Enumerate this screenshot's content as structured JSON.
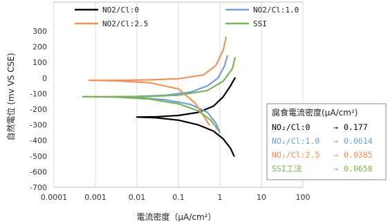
{
  "chart_data": {
    "type": "line",
    "xlabel": "電流密度（μA/cm²）",
    "ylabel": "自然電位 (mv VS CSE)",
    "xscale": "log",
    "xlim": [
      0.0001,
      100
    ],
    "ylim": [
      -700,
      300
    ],
    "x_ticks": [
      "0.0001",
      "0.001",
      "0.01",
      "0.1",
      "1",
      "10",
      "100"
    ],
    "y_ticks": [
      "300",
      "200",
      "100",
      "0",
      "-100",
      "-200",
      "-300",
      "-400",
      "-500",
      "-600",
      "-700"
    ],
    "grid": "vertical",
    "legend_position": "top",
    "series": [
      {
        "name": "NO2/Cl:0",
        "color": "#000000",
        "anodic": {
          "x": [
            0.01,
            0.03,
            0.1,
            0.3,
            0.7,
            1.2,
            1.8,
            2.3
          ],
          "y": [
            -250,
            -248,
            -240,
            -220,
            -180,
            -120,
            -50,
            0
          ]
        },
        "cathodic": {
          "x": [
            0.01,
            0.03,
            0.1,
            0.3,
            0.7,
            1.2,
            1.8,
            2.2
          ],
          "y": [
            -250,
            -255,
            -270,
            -300,
            -340,
            -390,
            -450,
            -500
          ]
        }
      },
      {
        "name": "NO2/Cl:1.0",
        "color": "#6f9fd8",
        "anodic": {
          "x": [
            0.003,
            0.01,
            0.05,
            0.2,
            0.5,
            0.9,
            1.3,
            1.5
          ],
          "y": [
            -120,
            -118,
            -110,
            -90,
            -50,
            0,
            80,
            140
          ]
        },
        "cathodic": {
          "x": [
            0.003,
            0.01,
            0.05,
            0.2,
            0.5,
            0.8,
            1.0
          ],
          "y": [
            -120,
            -125,
            -140,
            -170,
            -220,
            -290,
            -350
          ]
        }
      },
      {
        "name": "NO2/Cl:2.5",
        "color": "#f0935a",
        "anodic": {
          "x": [
            0.0007,
            0.003,
            0.02,
            0.1,
            0.4,
            0.8,
            1.2,
            1.4
          ],
          "y": [
            -15,
            -15,
            -12,
            -5,
            20,
            80,
            180,
            260
          ]
        },
        "cathodic": {
          "x": [
            0.0007,
            0.003,
            0.02,
            0.1,
            0.25,
            0.4,
            0.55
          ],
          "y": [
            -15,
            -18,
            -30,
            -70,
            -160,
            -240,
            -300
          ]
        }
      },
      {
        "name": "SSI",
        "color": "#7cb356",
        "anodic": {
          "x": [
            0.0005,
            0.003,
            0.02,
            0.1,
            0.5,
            1.2,
            2.0,
            2.3
          ],
          "y": [
            -120,
            -120,
            -118,
            -110,
            -80,
            -20,
            60,
            130
          ]
        },
        "cathodic": {
          "x": [
            0.0005,
            0.003,
            0.02,
            0.1,
            0.3,
            0.6,
            0.95
          ],
          "y": [
            -120,
            -122,
            -135,
            -165,
            -210,
            -270,
            -340
          ]
        }
      }
    ],
    "annotation_box": {
      "title": "腐食電流密度(μA/cm²)",
      "rows": [
        {
          "label": "NO₂/Cl:0",
          "arrow": "→",
          "value": "0.177",
          "color": "#000000"
        },
        {
          "label": "NO₂/Cl:1.0",
          "arrow": "→",
          "value": "0.0614",
          "color": "#6f9fd8"
        },
        {
          "label": "NO₂/Cl:2.5",
          "arrow": "→",
          "value": "0.0385",
          "color": "#f0935a"
        },
        {
          "label": "SSI工法",
          "arrow": "→",
          "value": "0.0658",
          "color": "#7cb356"
        }
      ]
    }
  }
}
